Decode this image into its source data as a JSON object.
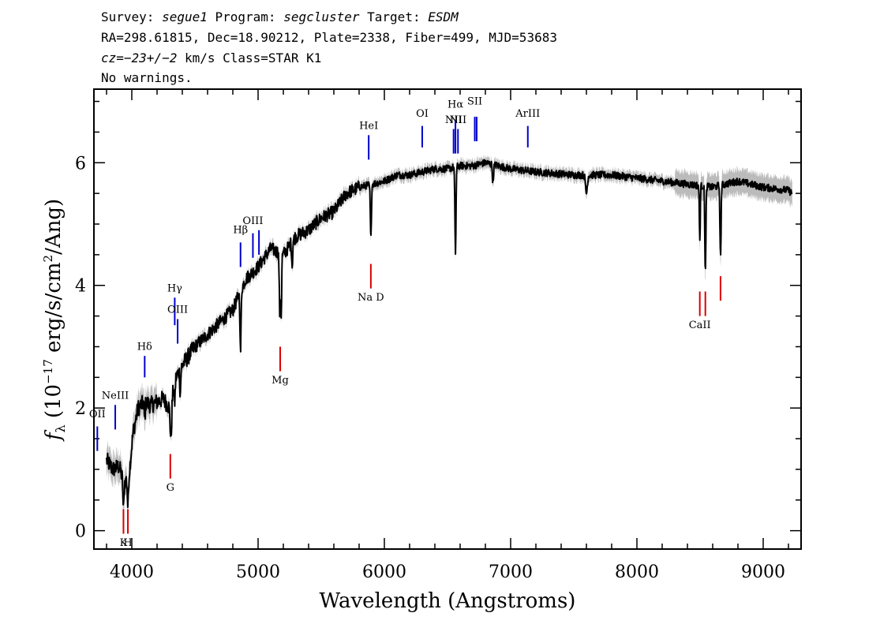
{
  "header": {
    "line1": {
      "p1": "Survey: ",
      "survey": "segue1",
      "p2": " Program: ",
      "program": "segcluster",
      "p3": " Target: ",
      "target": "ESDM"
    },
    "line2": "RA=298.61815, Dec=18.90212, Plate=2338, Fiber=499, MJD=53683",
    "line3": {
      "cz_label": "cz",
      "cz_value": "=−23+/−2",
      "rest": " km/s Class=STAR K1"
    },
    "line4": "No warnings."
  },
  "chart_data": {
    "type": "line",
    "xlabel": "Wavelength (Angstroms)",
    "ylabel": "f_λ (10^-17 erg/s/cm^2/Ang)",
    "ylabel_parts": {
      "f": "f",
      "lambda": "λ",
      "open": " (10",
      "exp1": "−17",
      "mid": " erg/s/cm",
      "exp2": "2",
      "close": "/Ang)"
    },
    "xlim": [
      3700,
      9300
    ],
    "ylim": [
      -0.3,
      7.2
    ],
    "x_ticks": [
      4000,
      5000,
      6000,
      7000,
      8000,
      9000
    ],
    "x_tick_labels": [
      "4000",
      "5000",
      "6000",
      "7000",
      "8000",
      "9000"
    ],
    "y_ticks": [
      0,
      2,
      4,
      6
    ],
    "y_tick_labels": [
      "0",
      "2",
      "4",
      "6"
    ],
    "grid": false,
    "colors": {
      "spectrum": "#000000",
      "error_band": "#bbbbbb",
      "emission": "#0000cc",
      "absorption": "#dd0000"
    },
    "series": [
      {
        "continuum": [
          [
            3800,
            1.15
          ],
          [
            3850,
            1.0
          ],
          [
            3900,
            1.05
          ],
          [
            3920,
            0.9
          ],
          [
            3950,
            0.8
          ],
          [
            3980,
            0.95
          ],
          [
            4010,
            1.6
          ],
          [
            4050,
            2.0
          ],
          [
            4100,
            2.1
          ],
          [
            4150,
            2.05
          ],
          [
            4200,
            2.1
          ],
          [
            4250,
            2.15
          ],
          [
            4300,
            2.0
          ],
          [
            4350,
            2.5
          ],
          [
            4400,
            2.7
          ],
          [
            4500,
            3.0
          ],
          [
            4600,
            3.2
          ],
          [
            4700,
            3.4
          ],
          [
            4800,
            3.6
          ],
          [
            4900,
            4.1
          ],
          [
            5000,
            4.3
          ],
          [
            5100,
            4.6
          ],
          [
            5200,
            4.5
          ],
          [
            5300,
            4.8
          ],
          [
            5400,
            4.9
          ],
          [
            5500,
            5.1
          ],
          [
            5600,
            5.2
          ],
          [
            5700,
            5.5
          ],
          [
            5800,
            5.6
          ],
          [
            5900,
            5.65
          ],
          [
            6000,
            5.7
          ],
          [
            6100,
            5.8
          ],
          [
            6200,
            5.8
          ],
          [
            6300,
            5.85
          ],
          [
            6400,
            5.9
          ],
          [
            6500,
            5.9
          ],
          [
            6600,
            5.95
          ],
          [
            6700,
            5.95
          ],
          [
            6800,
            6.0
          ],
          [
            6900,
            5.95
          ],
          [
            7000,
            5.9
          ],
          [
            7200,
            5.85
          ],
          [
            7500,
            5.8
          ],
          [
            7800,
            5.8
          ],
          [
            8000,
            5.75
          ],
          [
            8200,
            5.7
          ],
          [
            8400,
            5.65
          ],
          [
            8600,
            5.6
          ],
          [
            8800,
            5.7
          ],
          [
            9000,
            5.6
          ],
          [
            9200,
            5.55
          ],
          [
            9230,
            5.5
          ]
        ],
        "absorption_dips": [
          {
            "x": 3934,
            "depth": 0.5,
            "width": 6
          },
          {
            "x": 3969,
            "depth": 0.5,
            "width": 6
          },
          {
            "x": 4102,
            "depth": 0.3,
            "width": 5
          },
          {
            "x": 4310,
            "depth": 0.6,
            "width": 8
          },
          {
            "x": 4340,
            "depth": 0.3,
            "width": 5
          },
          {
            "x": 4384,
            "depth": 0.4,
            "width": 5
          },
          {
            "x": 4861,
            "depth": 1.0,
            "width": 6
          },
          {
            "x": 5172,
            "depth": 1.0,
            "width": 6
          },
          {
            "x": 5183,
            "depth": 1.0,
            "width": 5
          },
          {
            "x": 5270,
            "depth": 0.4,
            "width": 5
          },
          {
            "x": 5893,
            "depth": 0.9,
            "width": 6
          },
          {
            "x": 6563,
            "depth": 1.4,
            "width": 6
          },
          {
            "x": 6860,
            "depth": 0.3,
            "width": 6
          },
          {
            "x": 7600,
            "depth": 0.3,
            "width": 10
          },
          {
            "x": 8498,
            "depth": 0.9,
            "width": 5
          },
          {
            "x": 8542,
            "depth": 1.4,
            "width": 6
          },
          {
            "x": 8662,
            "depth": 1.2,
            "width": 6
          }
        ]
      }
    ],
    "emission_lines": [
      {
        "label": "OII",
        "x": 3727,
        "y0": 1.3,
        "y1": 1.7,
        "label_y": 1.85
      },
      {
        "label": "NeIII",
        "x": 3869,
        "y0": 1.65,
        "y1": 2.05,
        "label_y": 2.15
      },
      {
        "label": "Hδ",
        "x": 4102,
        "y0": 2.5,
        "y1": 2.85,
        "label_y": 2.95
      },
      {
        "label": "Hγ",
        "x": 4340,
        "y0": 3.35,
        "y1": 3.8,
        "label_y": 3.9
      },
      {
        "label": "OIII",
        "x": 4363,
        "y0": 3.05,
        "y1": 3.45,
        "label_y": 3.55
      },
      {
        "label": "Hβ",
        "x": 4861,
        "y0": 4.3,
        "y1": 4.7,
        "label_y": 4.85
      },
      {
        "label": "OIII",
        "x": 4959,
        "y0": 4.45,
        "y1": 4.85,
        "label_y": 5.0
      },
      {
        "label": "",
        "x": 5007,
        "y0": 4.5,
        "y1": 4.9,
        "label_y": 5.0
      },
      {
        "label": "HeI",
        "x": 5876,
        "y0": 6.05,
        "y1": 6.45,
        "label_y": 6.55
      },
      {
        "label": "OI",
        "x": 6300,
        "y0": 6.25,
        "y1": 6.6,
        "label_y": 6.75
      },
      {
        "label": "NII",
        "x": 6548,
        "y0": 6.15,
        "y1": 6.55,
        "label_y": 6.65
      },
      {
        "label": "Hα",
        "x": 6563,
        "y0": 6.15,
        "y1": 6.7,
        "label_y": 6.9
      },
      {
        "label": "NII",
        "x": 6583,
        "y0": 6.15,
        "y1": 6.55,
        "label_y": 6.65
      },
      {
        "label": "SII",
        "x": 6716,
        "y0": 6.35,
        "y1": 6.75,
        "label_y": 6.95
      },
      {
        "label": "",
        "x": 6731,
        "y0": 6.35,
        "y1": 6.75,
        "label_y": 6.95
      },
      {
        "label": "ArIII",
        "x": 7136,
        "y0": 6.25,
        "y1": 6.6,
        "label_y": 6.75
      }
    ],
    "absorption_lines": [
      {
        "label": "K",
        "x": 3934,
        "y0": -0.05,
        "y1": 0.35,
        "label_y": -0.25
      },
      {
        "label": "H",
        "x": 3969,
        "y0": -0.05,
        "y1": 0.35,
        "label_y": -0.25
      },
      {
        "label": "G",
        "x": 4305,
        "y0": 0.85,
        "y1": 1.25,
        "label_y": 0.65
      },
      {
        "label": "Mg",
        "x": 5175,
        "y0": 2.6,
        "y1": 3.0,
        "label_y": 2.4
      },
      {
        "label": "Na D",
        "x": 5893,
        "y0": 3.95,
        "y1": 4.35,
        "label_y": 3.75
      },
      {
        "label": "CaII",
        "x": 8498,
        "y0": 3.5,
        "y1": 3.9,
        "label_y": 3.3
      },
      {
        "label": "",
        "x": 8542,
        "y0": 3.5,
        "y1": 3.9,
        "label_y": 3.3
      },
      {
        "label": "",
        "x": 8662,
        "y0": 3.75,
        "y1": 4.15,
        "label_y": 3.3
      }
    ]
  }
}
